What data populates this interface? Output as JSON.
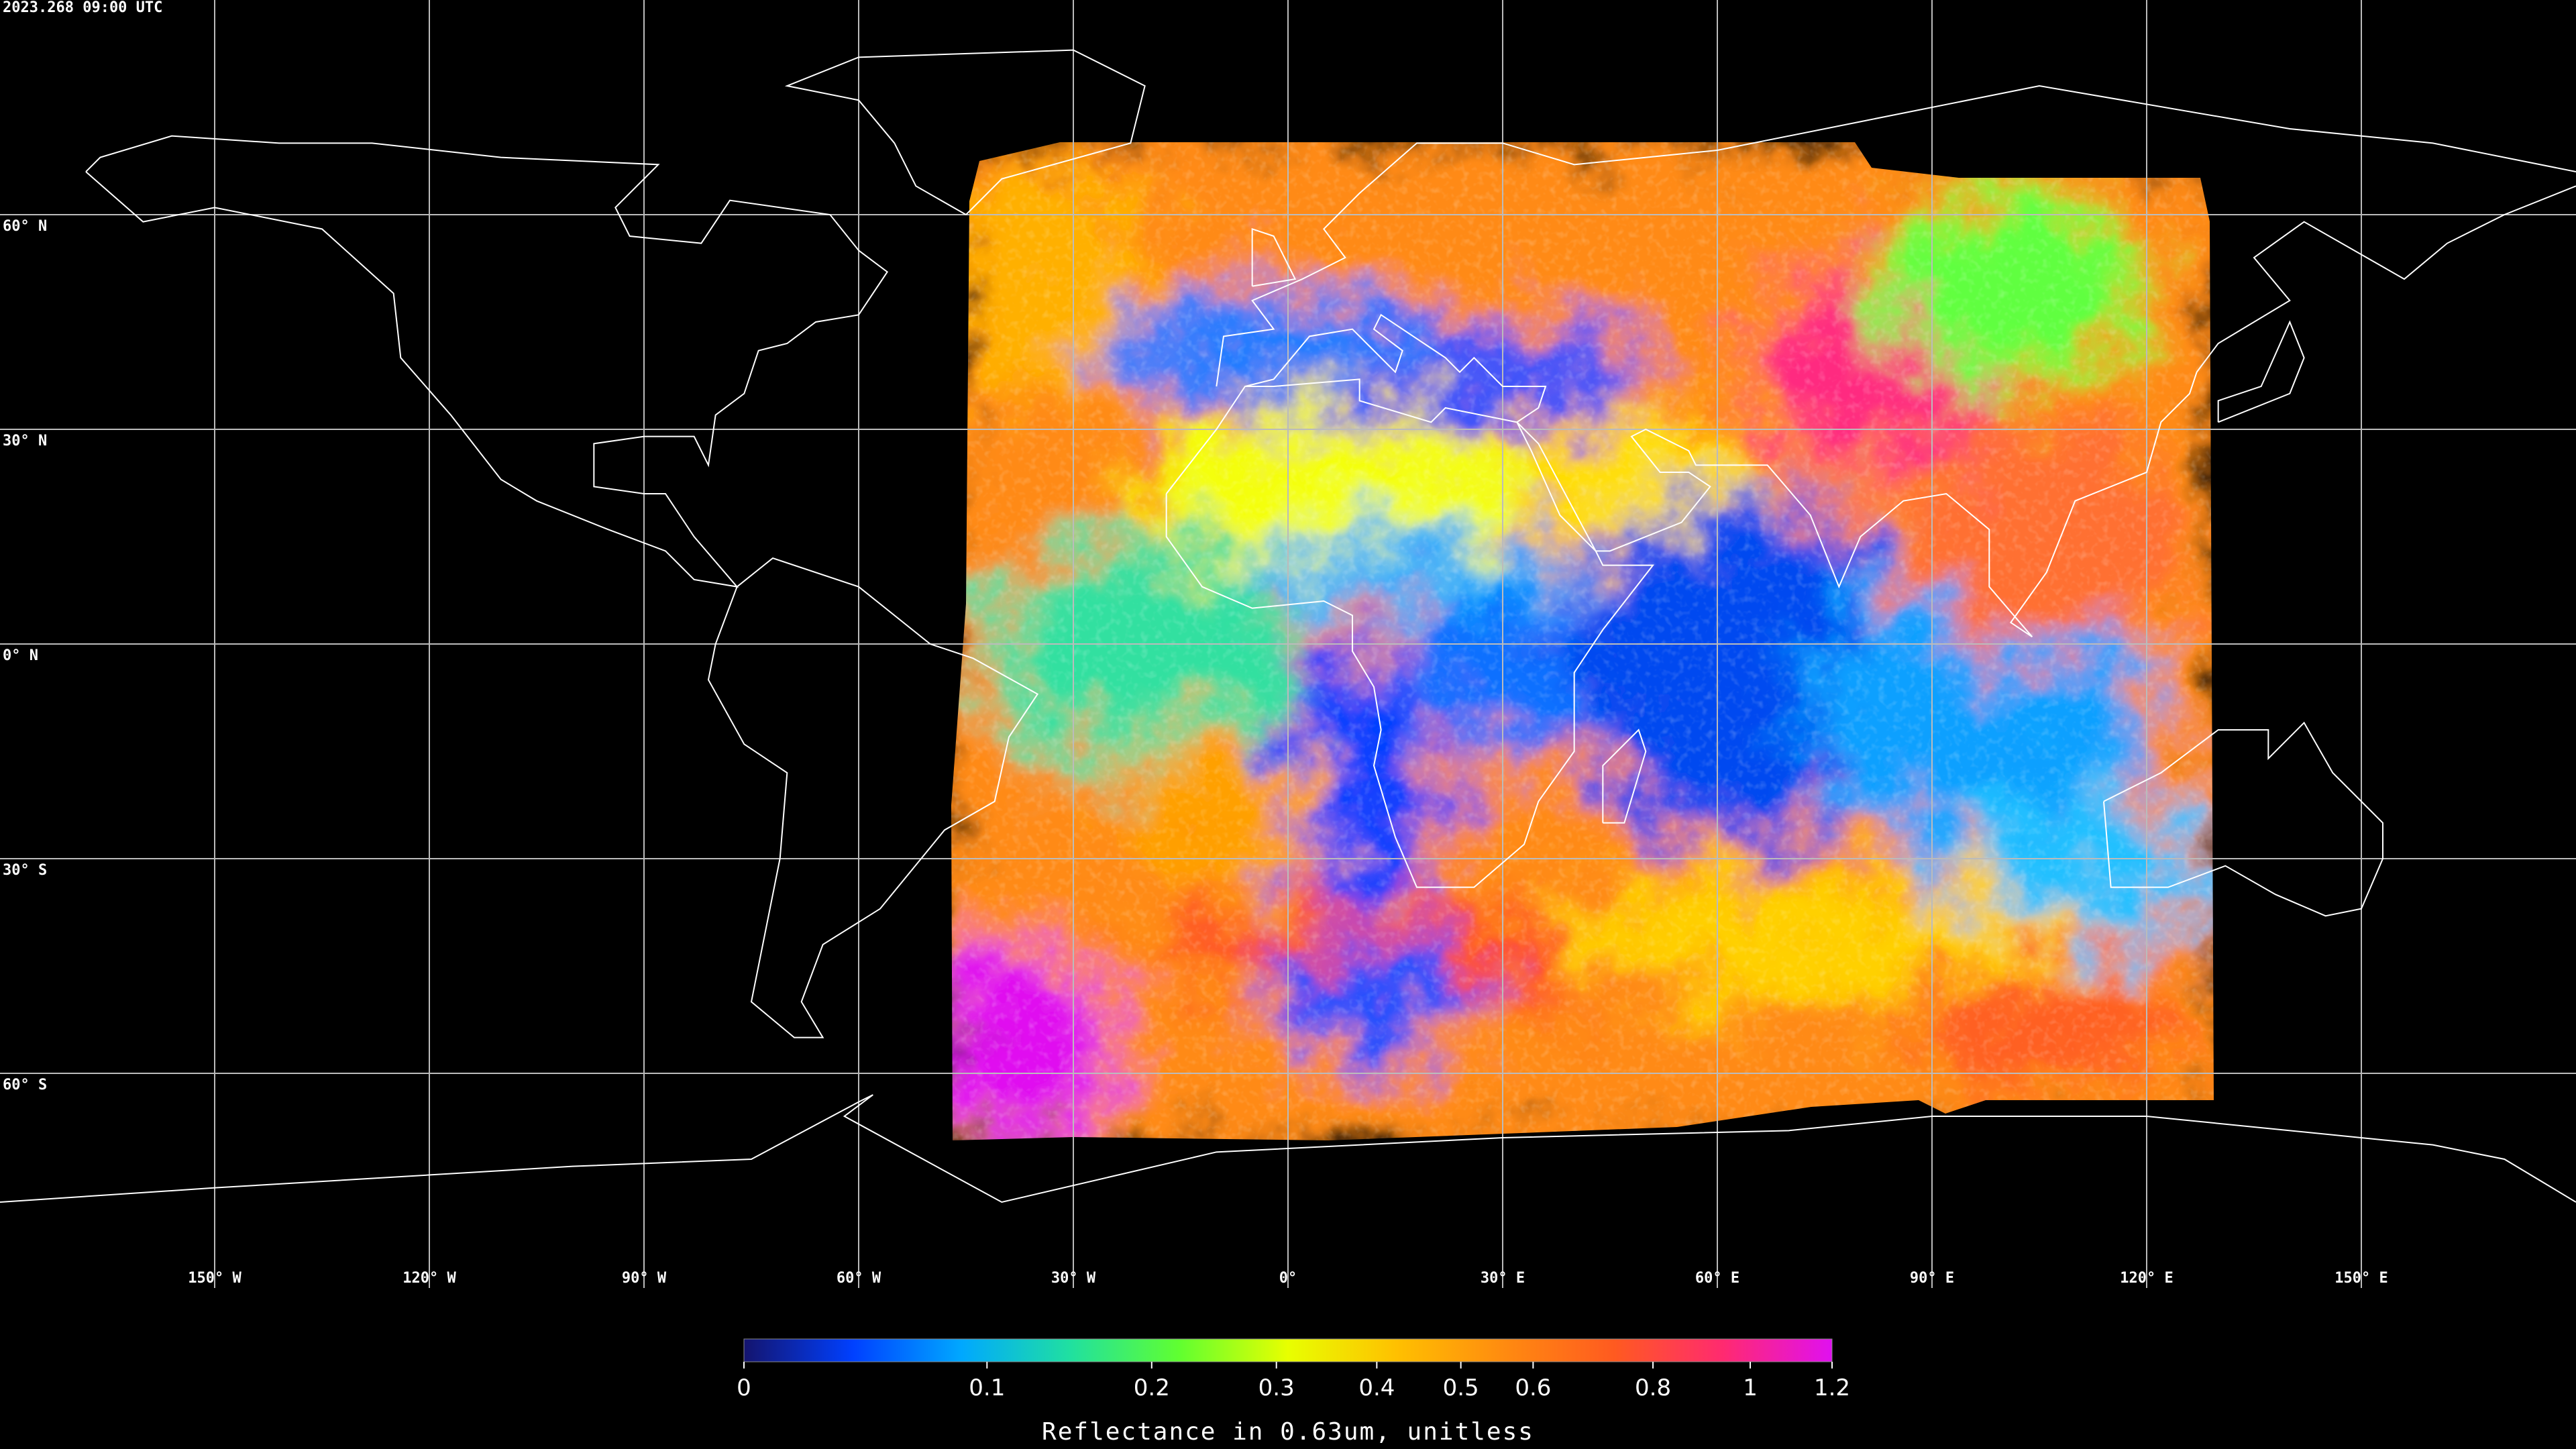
{
  "header": {
    "timestamp": "2023.268 09:00 UTC"
  },
  "map": {
    "lat_lines": [
      {
        "value": 60,
        "label": "60° N"
      },
      {
        "value": 30,
        "label": "30° N"
      },
      {
        "value": 0,
        "label": "0° N"
      },
      {
        "value": -30,
        "label": "30° S"
      },
      {
        "value": -60,
        "label": "60° S"
      }
    ],
    "lon_lines": [
      {
        "value": -150,
        "label": "150° W"
      },
      {
        "value": -120,
        "label": "120° W"
      },
      {
        "value": -90,
        "label": "90° W"
      },
      {
        "value": -60,
        "label": "60° W"
      },
      {
        "value": -30,
        "label": "30° W"
      },
      {
        "value": 0,
        "label": "0°"
      },
      {
        "value": 30,
        "label": "30° E"
      },
      {
        "value": 60,
        "label": "60° E"
      },
      {
        "value": 90,
        "label": "90° E"
      },
      {
        "value": 120,
        "label": "120° E"
      },
      {
        "value": 150,
        "label": "150° E"
      }
    ]
  },
  "colorbar": {
    "label": "Reflectance in 0.63um, unitless",
    "range": [
      0,
      1.2
    ],
    "ticks": [
      0,
      0.1,
      0.2,
      0.3,
      0.4,
      0.5,
      0.6,
      0.8,
      1,
      1.2
    ],
    "colors": [
      "#14146e",
      "#0040ff",
      "#00a8ff",
      "#20e0a0",
      "#60ff30",
      "#e8ff00",
      "#ffc000",
      "#ff8a10",
      "#ff5a20",
      "#ff2a70",
      "#e010f0"
    ]
  }
}
